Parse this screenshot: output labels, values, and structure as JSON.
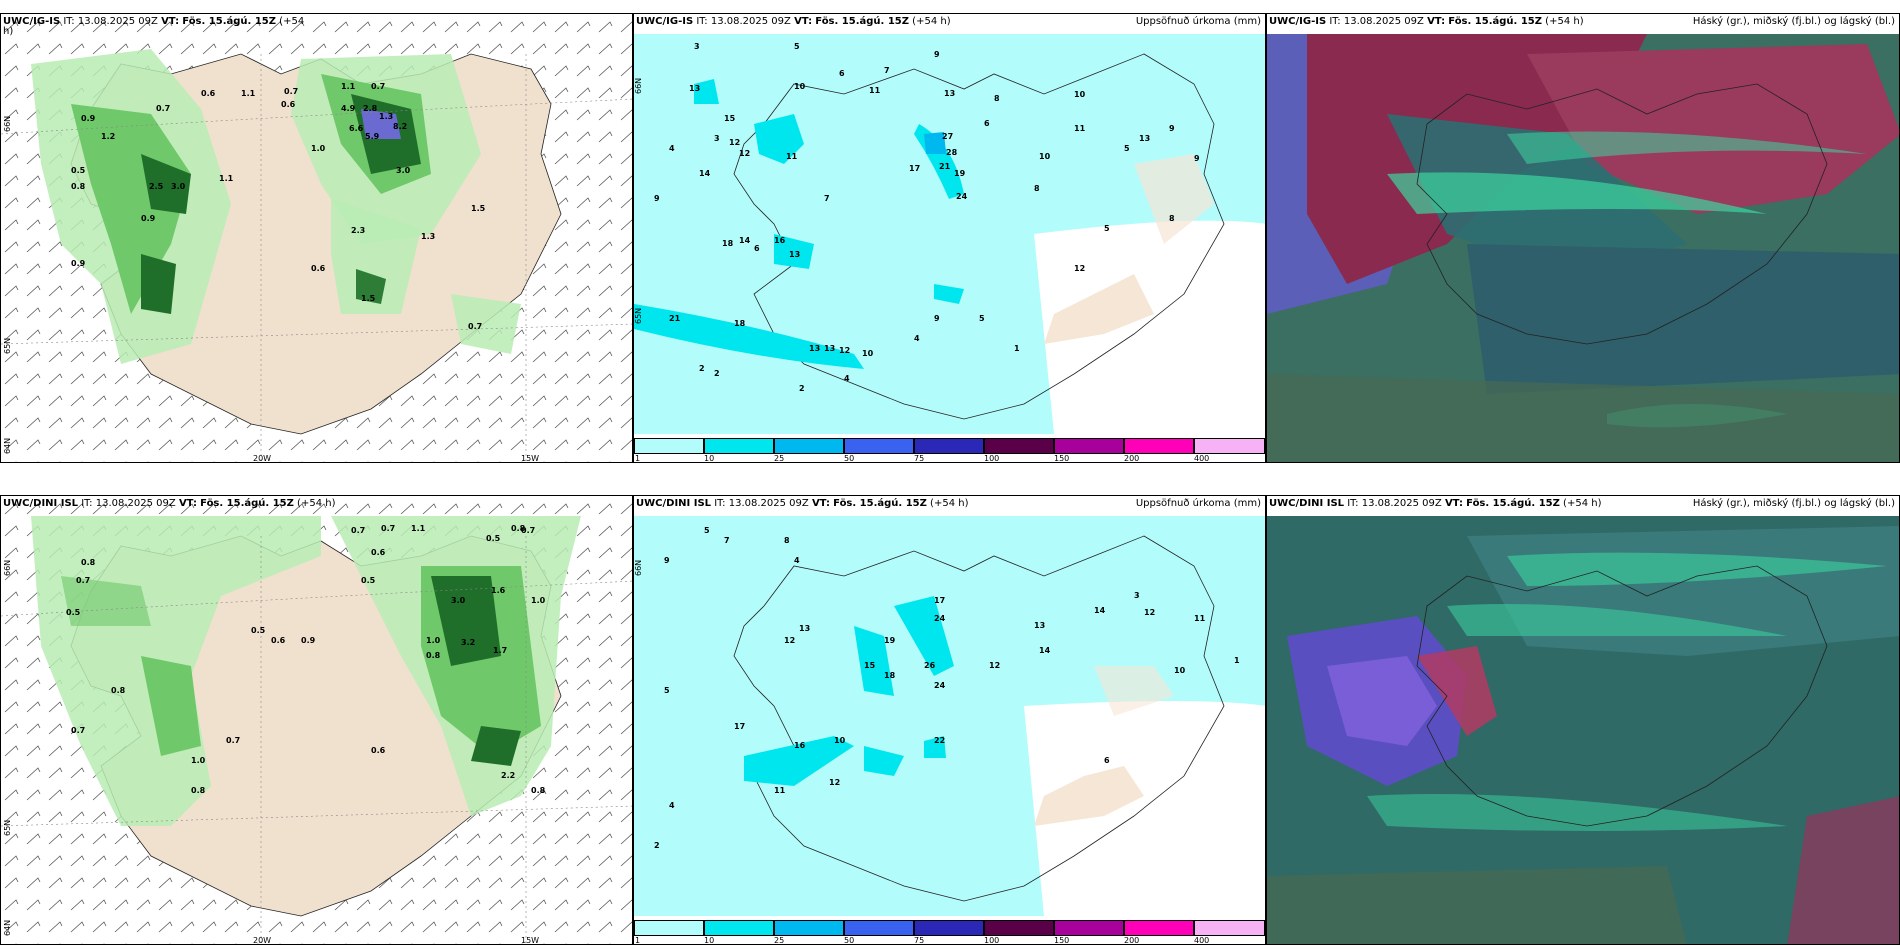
{
  "panels": [
    {
      "id": "p1",
      "header_model": "UWC/IG-IS",
      "header_it": "IT: 13.08.2025 09Z",
      "header_vt_label": "VT:",
      "header_vt": "Fös. 15.ágú. 15Z",
      "header_lead": "(+54",
      "header_wrap": "h)",
      "right_title": "",
      "lon_labels": [
        "20W",
        "15W"
      ],
      "lat_labels": [
        "66N",
        "65N",
        "64N"
      ]
    },
    {
      "id": "p2",
      "header_model": "UWC/IG-IS",
      "header_it": "IT: 13.08.2025 09Z",
      "header_vt_label": "VT:",
      "header_vt": "Fös. 15.ágú. 15Z",
      "header_lead": "(+54 h)",
      "right_title": "Uppsöfnuð úrkoma (mm)",
      "lat_labels": [
        "66N",
        "65N"
      ]
    },
    {
      "id": "p3",
      "header_model": "UWC/IG-IS",
      "header_it": "IT: 13.08.2025 09Z",
      "header_vt_label": "VT:",
      "header_vt": "Fös. 15.ágú. 15Z",
      "header_lead": "(+54 h)",
      "right_title": "Háský (gr.), miðský (fj.bl.) og lágský (bl.)"
    },
    {
      "id": "p4",
      "header_model": "UWC/DINI ISL",
      "header_it": "IT: 13.08.2025 09Z",
      "header_vt_label": "VT:",
      "header_vt": "Fös. 15.ágú. 15Z",
      "header_lead": "(+54 h)",
      "right_title": "",
      "lon_labels": [
        "20W",
        "15W"
      ],
      "lat_labels": [
        "66N",
        "65N",
        "64N"
      ]
    },
    {
      "id": "p5",
      "header_model": "UWC/DINI ISL",
      "header_it": "IT: 13.08.2025 09Z",
      "header_vt_label": "VT:",
      "header_vt": "Fös. 15.ágú. 15Z",
      "header_lead": "(+54 h)",
      "right_title": "Uppsöfnuð úrkoma (mm)",
      "lat_labels": [
        "66N"
      ]
    },
    {
      "id": "p6",
      "header_model": "UWC/DINI ISL",
      "header_it": "IT: 13.08.2025 09Z",
      "header_vt_label": "VT:",
      "header_vt": "Fös. 15.ágú. 15Z",
      "header_lead": "(+54 h)",
      "right_title": "Háský (gr.), miðský (fj.bl.) og lágský (bl.)"
    }
  ],
  "colorbar": {
    "ticks": [
      "1",
      "10",
      "25",
      "50",
      "75",
      "100",
      "150",
      "200",
      "400"
    ],
    "colors": [
      "#b3fcfc",
      "#00e6ee",
      "#00b8f0",
      "#3a62f0",
      "#2b28b8",
      "#5a0048",
      "#a8009a",
      "#ff00b8",
      "#f6b2f4"
    ]
  },
  "precip_values_top": [
    "3",
    "5",
    "9",
    "7",
    "13",
    "6",
    "10",
    "11",
    "13",
    "8",
    "10",
    "9",
    "3",
    "14",
    "15",
    "12",
    "4",
    "12",
    "11",
    "27",
    "28",
    "21",
    "19",
    "17",
    "24",
    "10",
    "5",
    "9",
    "8",
    "7",
    "6",
    "18",
    "14",
    "16",
    "13",
    "21",
    "18",
    "13",
    "13",
    "12",
    "10",
    "2",
    "2",
    "4",
    "2",
    "4",
    "9",
    "5",
    "1",
    "12",
    "13",
    "6",
    "11",
    "9",
    "8",
    "5"
  ],
  "precip_values_bottom": [
    "5",
    "7",
    "9",
    "8",
    "4",
    "12",
    "13",
    "15",
    "17",
    "24",
    "19",
    "18",
    "26",
    "24",
    "12",
    "14",
    "10",
    "16",
    "22",
    "17",
    "12",
    "11",
    "5",
    "2",
    "4",
    "13",
    "14",
    "12",
    "10",
    "11",
    "6",
    "1",
    "3"
  ],
  "rain_labels_top": [
    "0.6",
    "1.1",
    "0.7",
    "0.6",
    "0.7",
    "1.1",
    "4.9",
    "2.8",
    "1.3",
    "8.2",
    "6.6",
    "5.9",
    "3.0",
    "1.0",
    "0.9",
    "1.2",
    "0.8",
    "0.5",
    "0.7",
    "2.5",
    "3.0",
    "1.1",
    "0.9",
    "0.6",
    "2.3",
    "1.3",
    "1.5",
    "1.5",
    "0.7",
    "0.9"
  ],
  "rain_labels_bottom": [
    "0.7",
    "0.7",
    "1.1",
    "0.6",
    "0.5",
    "0.5",
    "0.8",
    "0.7",
    "0.8",
    "0.7",
    "0.5",
    "1.0",
    "3.0",
    "1.6",
    "1.0",
    "3.2",
    "1.7",
    "0.8",
    "0.6",
    "0.7",
    "0.8",
    "0.9",
    "0.5",
    "0.6",
    "0.7",
    "1.0",
    "0.8",
    "2.2",
    "0.8"
  ]
}
